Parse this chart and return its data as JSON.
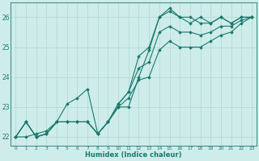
{
  "xlabel": "Humidex (Indice chaleur)",
  "background_color": "#ceecea",
  "grid_color": "#b0d8d4",
  "line_color": "#1a7a6e",
  "xlim": [
    -0.5,
    23.5
  ],
  "ylim": [
    21.7,
    26.5
  ],
  "xticks": [
    0,
    1,
    2,
    3,
    4,
    5,
    6,
    7,
    8,
    9,
    10,
    11,
    12,
    13,
    14,
    15,
    16,
    17,
    18,
    19,
    20,
    21,
    22,
    23
  ],
  "yticks": [
    22,
    23,
    24,
    25,
    26
  ],
  "series": [
    [
      22.0,
      22.5,
      22.0,
      22.1,
      22.5,
      22.5,
      22.5,
      22.5,
      22.1,
      22.5,
      23.1,
      23.5,
      24.7,
      25.0,
      26.0,
      26.3,
      26.0,
      25.8,
      26.0,
      25.8,
      26.0,
      25.8,
      26.0,
      26.0
    ],
    [
      22.0,
      22.0,
      22.1,
      22.2,
      22.5,
      22.5,
      22.5,
      22.5,
      22.1,
      22.5,
      23.0,
      23.3,
      23.9,
      24.0,
      24.9,
      25.2,
      25.0,
      25.0,
      25.0,
      25.2,
      25.4,
      25.5,
      25.8,
      26.0
    ],
    [
      22.0,
      22.5,
      22.0,
      22.1,
      22.5,
      22.5,
      22.5,
      22.5,
      22.1,
      22.5,
      23.1,
      23.5,
      24.3,
      24.5,
      25.5,
      25.7,
      25.5,
      25.5,
      25.4,
      25.5,
      25.7,
      25.7,
      25.9,
      26.0
    ],
    [
      22.0,
      22.5,
      22.0,
      22.1,
      22.5,
      23.1,
      23.3,
      23.6,
      22.1,
      22.5,
      23.0,
      23.0,
      24.0,
      24.9,
      26.0,
      26.2,
      26.0,
      26.0,
      25.8,
      25.8,
      26.0,
      25.8,
      26.0,
      26.0
    ]
  ]
}
